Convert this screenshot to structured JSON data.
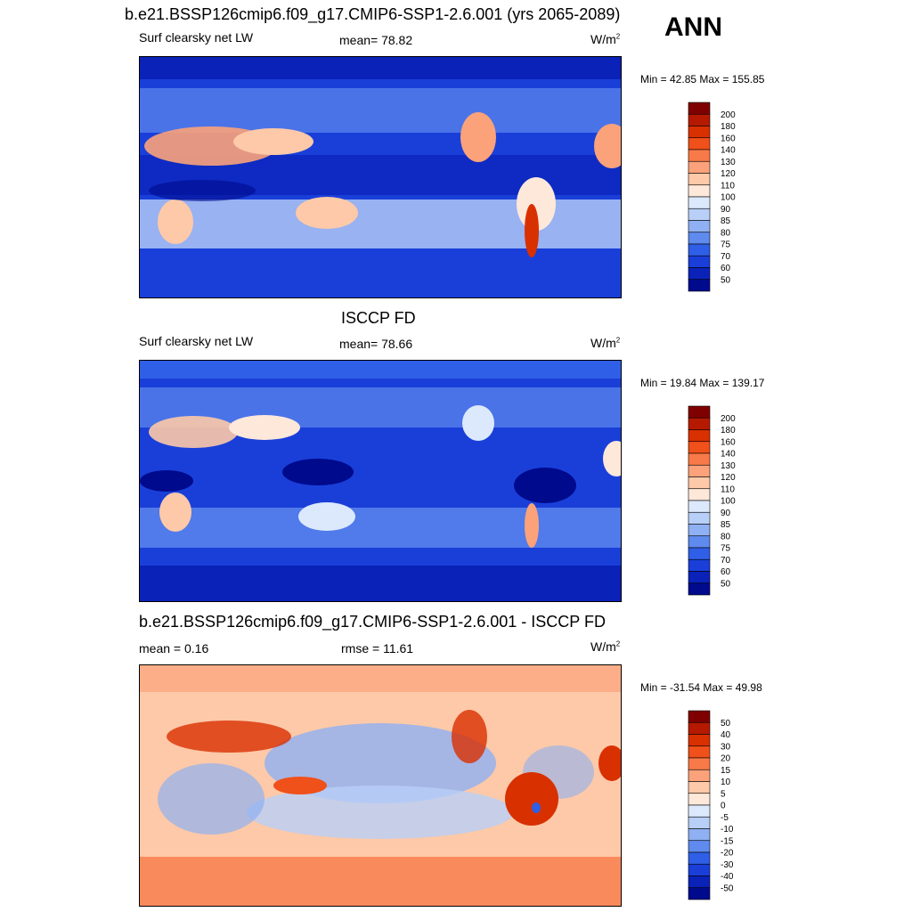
{
  "page": {
    "season": "ANN",
    "units_base": "W/m",
    "units_exp": "2"
  },
  "panels": [
    {
      "title": "b.e21.BSSP126cmip6.f09_g17.CMIP6-SSP1-2.6.001 (yrs 2065-2089)",
      "variable": "Surf clearsky net LW",
      "stat_left": "",
      "stat_center": "mean=  78.82",
      "minmax": "Min =  42.85 Max = 155.85",
      "palette": "absolute"
    },
    {
      "title": "ISCCP FD",
      "variable": "Surf clearsky net LW",
      "stat_left": "",
      "stat_center": "mean=  78.66",
      "minmax": "Min =  19.84 Max = 139.17",
      "palette": "absolute"
    },
    {
      "title": "b.e21.BSSP126cmip6.f09_g17.CMIP6-SSP1-2.6.001 - ISCCP FD",
      "variable": "",
      "stat_left": "mean =   0.16",
      "stat_center": "rmse =  11.61",
      "minmax": "Min = -31.54 Max =  49.98",
      "palette": "difference"
    }
  ],
  "colorbars": {
    "absolute": {
      "labels": [
        "200",
        "180",
        "160",
        "140",
        "130",
        "120",
        "110",
        "100",
        "90",
        "85",
        "80",
        "75",
        "70",
        "60",
        "50"
      ],
      "colors": [
        "#7f0000",
        "#b51a00",
        "#d93000",
        "#f0501a",
        "#f87a48",
        "#fba27a",
        "#fdc9a8",
        "#fde8da",
        "#dce9fc",
        "#b8cff8",
        "#8fb0f2",
        "#5f8aee",
        "#2f5fe6",
        "#1a3fd9",
        "#0a22b8",
        "#000a8c"
      ]
    },
    "difference": {
      "labels": [
        "50",
        "40",
        "30",
        "20",
        "15",
        "10",
        "5",
        "0",
        "-5",
        "-10",
        "-15",
        "-20",
        "-30",
        "-40",
        "-50"
      ],
      "colors": [
        "#7f0000",
        "#b51a00",
        "#d93000",
        "#f0501a",
        "#f87a48",
        "#fba27a",
        "#fdc9a8",
        "#fde8da",
        "#dce9fc",
        "#b8cff8",
        "#8fb0f2",
        "#5f8aee",
        "#2f5fe6",
        "#1a3fd9",
        "#0a22b8",
        "#000a8c"
      ]
    }
  },
  "chart_data": [
    {
      "type": "heatmap",
      "title": "b.e21.BSSP126cmip6.f09_g17.CMIP6-SSP1-2.6.001 (yrs 2065-2089)",
      "variable": "Surf clearsky net LW",
      "units": "W/m2",
      "mean": 78.82,
      "min": 42.85,
      "max": 155.85,
      "contour_levels": [
        50,
        60,
        70,
        75,
        80,
        85,
        90,
        100,
        110,
        120,
        130,
        140,
        160,
        180,
        200
      ]
    },
    {
      "type": "heatmap",
      "title": "ISCCP FD",
      "variable": "Surf clearsky net LW",
      "units": "W/m2",
      "mean": 78.66,
      "min": 19.84,
      "max": 139.17,
      "contour_levels": [
        50,
        60,
        70,
        75,
        80,
        85,
        90,
        100,
        110,
        120,
        130,
        140,
        160,
        180,
        200
      ]
    },
    {
      "type": "heatmap",
      "title": "b.e21.BSSP126cmip6.f09_g17.CMIP6-SSP1-2.6.001 - ISCCP FD",
      "units": "W/m2",
      "mean": 0.16,
      "rmse": 11.61,
      "min": -31.54,
      "max": 49.98,
      "contour_levels": [
        -50,
        -40,
        -30,
        -20,
        -15,
        -10,
        -5,
        0,
        5,
        10,
        15,
        20,
        30,
        40,
        50
      ]
    }
  ]
}
